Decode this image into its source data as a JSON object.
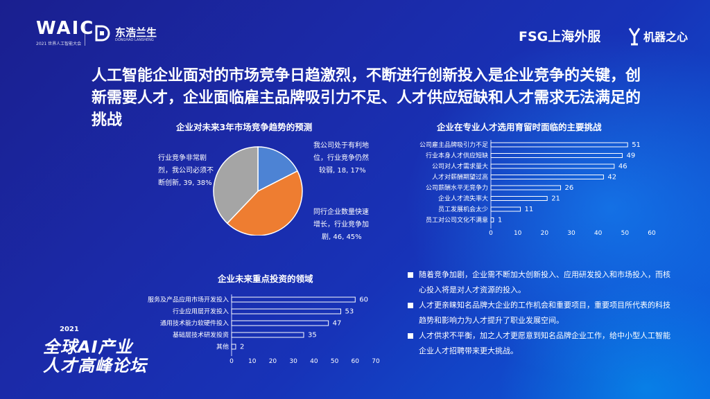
{
  "header": {
    "waic_text": "WAIC",
    "waic_sub": "2021 世界人工智能大会",
    "donghao_cn": "东浩兰生",
    "donghao_en": "DONGHAO LANSHENG",
    "fsg_text": "FSG上海外服",
    "jiqi_text": "机器之心"
  },
  "headline": "人工智能企业面对的市场竞争日趋激烈，不断进行创新投入是企业竞争的关键，创新需要人才，企业面临雇主品牌吸引力不足、人才供应短缺和人才需求无法满足的挑战",
  "colors": {
    "pie_blue": "#4d83d4",
    "pie_orange": "#ee7d31",
    "pie_gray": "#a5a5a5",
    "bar_outline": "#ffffff"
  },
  "event": {
    "year": "2021",
    "line1": "全球AI产业",
    "line2": "人才高峰论坛"
  },
  "bullets": [
    "随着竞争加剧，企业需不断加大创新投入、应用研发投入和市场投入，而核心投入将是对人才资源的投入。",
    "人才更亲睐知名品牌大企业的工作机会和重要项目，重要项目所代表的科技趋势和影响力为人才提升了职业发展空间。",
    "人才供求不平衡，加之人才更愿意到知名品牌企业工作，给中小型人工智能企业人才招聘带来更大挑战。"
  ],
  "chart_data": [
    {
      "type": "pie",
      "title": "企业对未来3年市场竞争趋势的预测",
      "slices": [
        {
          "label_lines": [
            "我公司处于有利地",
            "位，行业竞争仍然",
            "较弱, 18, 17%"
          ],
          "value": 18,
          "percent": 17,
          "color": "#4d83d4"
        },
        {
          "label_lines": [
            "同行企业数量快速",
            "增长，行业竞争加",
            "剧, 46, 45%"
          ],
          "value": 46,
          "percent": 45,
          "color": "#ee7d31"
        },
        {
          "label_lines": [
            "行业竞争非常剧",
            "烈，我公司必须不",
            "断创新, 39, 38%"
          ],
          "value": 39,
          "percent": 38,
          "color": "#a5a5a5"
        }
      ]
    },
    {
      "type": "bar",
      "orientation": "horizontal",
      "title": "企业在专业人才选用育留时面临的主要挑战",
      "categories": [
        "公司雇主品牌吸引力不足",
        "行业本身人才供应短缺",
        "公司对人才需求量大",
        "人才对薪酬期望过高",
        "公司薪酬水平无竞争力",
        "企业人才流失率大",
        "员工发展机会太少",
        "员工对公司文化不满意"
      ],
      "values": [
        51,
        49,
        46,
        42,
        26,
        21,
        11,
        1
      ],
      "xlim": [
        0,
        60
      ],
      "xticks": [
        "0",
        "10",
        "20",
        "30",
        "40",
        "50",
        "60"
      ]
    },
    {
      "type": "bar",
      "orientation": "horizontal",
      "title": "企业未来重点投资的领域",
      "categories": [
        "服务及产品应用市场开发投入",
        "行业应用层开发投入",
        "通用技术能力软硬件投入",
        "基础层技术研发投资",
        "其他"
      ],
      "values": [
        60,
        53,
        47,
        35,
        2
      ],
      "xlim": [
        0,
        70
      ],
      "xticks": [
        "0",
        "10",
        "20",
        "30",
        "40",
        "50",
        "60",
        "70"
      ]
    }
  ]
}
